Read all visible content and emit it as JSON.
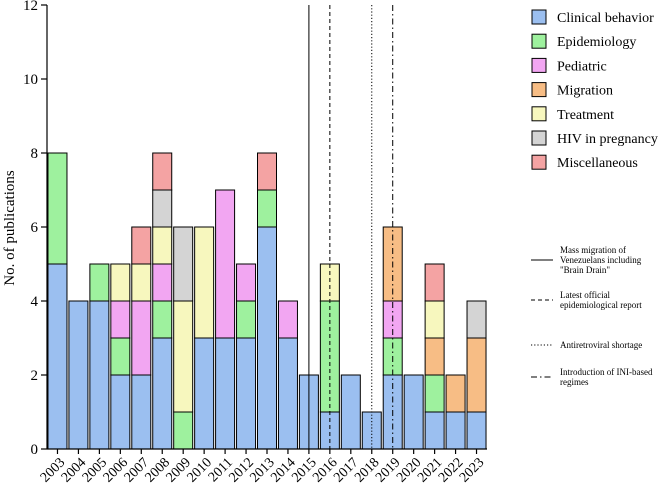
{
  "chart_data": {
    "type": "bar",
    "stacked": true,
    "ylabel": "No. of publications",
    "xlabel": "",
    "ylim": [
      0,
      12
    ],
    "yticks": [
      "0",
      "2",
      "4",
      "6",
      "8",
      "10",
      "12"
    ],
    "categories": [
      "2003",
      "2004",
      "2005",
      "2006",
      "2007",
      "2008",
      "2009",
      "2010",
      "2011",
      "2012",
      "2013",
      "2014",
      "2015",
      "2016",
      "2017",
      "2018",
      "2019",
      "2020",
      "2021",
      "2022",
      "2023"
    ],
    "series": [
      {
        "name": "Clinical behavior",
        "color": "#9bbff0",
        "values": [
          5,
          4,
          4,
          2,
          2,
          3,
          0,
          3,
          3,
          3,
          6,
          3,
          2,
          1,
          2,
          1,
          2,
          2,
          1,
          1,
          1
        ]
      },
      {
        "name": "Epidemiology",
        "color": "#9ef19e",
        "values": [
          3,
          0,
          1,
          1,
          0,
          1,
          1,
          0,
          0,
          1,
          1,
          0,
          0,
          3,
          0,
          0,
          1,
          0,
          1,
          0,
          0
        ]
      },
      {
        "name": "Pediatric",
        "color": "#f2a6f2",
        "values": [
          0,
          0,
          0,
          1,
          2,
          1,
          0,
          0,
          4,
          1,
          0,
          1,
          0,
          0,
          0,
          0,
          1,
          0,
          0,
          0,
          0
        ]
      },
      {
        "name": "Migration",
        "color": "#f7bd85",
        "values": [
          0,
          0,
          0,
          0,
          0,
          0,
          0,
          0,
          0,
          0,
          0,
          0,
          0,
          0,
          0,
          0,
          2,
          0,
          1,
          1,
          2
        ]
      },
      {
        "name": "Treatment",
        "color": "#f7f7be",
        "values": [
          0,
          0,
          0,
          1,
          1,
          1,
          3,
          3,
          0,
          0,
          0,
          0,
          0,
          1,
          0,
          0,
          0,
          0,
          1,
          0,
          0
        ]
      },
      {
        "name": "HIV in pregnancy",
        "color": "#d4d4d4",
        "values": [
          0,
          0,
          0,
          0,
          0,
          1,
          2,
          0,
          0,
          0,
          0,
          0,
          0,
          0,
          0,
          0,
          0,
          0,
          0,
          0,
          1
        ]
      },
      {
        "name": "Miscellaneous",
        "color": "#f4a3a3",
        "values": [
          0,
          0,
          0,
          0,
          1,
          1,
          0,
          0,
          0,
          0,
          1,
          0,
          0,
          0,
          0,
          0,
          0,
          0,
          1,
          0,
          0
        ]
      }
    ],
    "vlines": [
      {
        "x": "2015",
        "style": "solid",
        "label": "Mass migration of Venezuelans including \"Brain Drain\""
      },
      {
        "x": "2016",
        "style": "dashed",
        "label": "Latest official epidemiological report"
      },
      {
        "x": "2018",
        "style": "dotted",
        "label": "Antiretroviral shortage"
      },
      {
        "x": "2019",
        "style": "dashdot",
        "label": "Introduction of INI-based regimes"
      }
    ],
    "grid": false,
    "legend_position": "top-right"
  }
}
